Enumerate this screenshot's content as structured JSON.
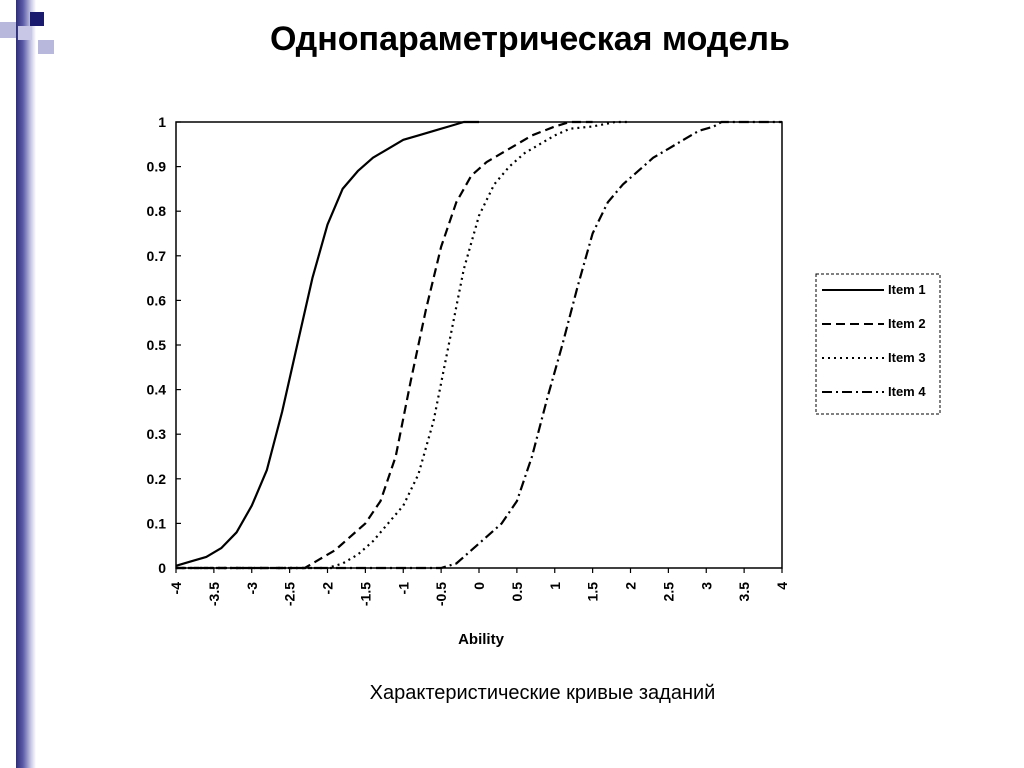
{
  "slide": {
    "title": "Однопараметрическая модель",
    "caption": "Характеристические кривые заданий",
    "colors": {
      "bar_dark": "#2e2e78",
      "bar_light": "#c8c8e6",
      "square_navy": "#1a1a6e",
      "square_light": "#b8b8dc"
    }
  },
  "chart_data": {
    "type": "line",
    "title": "",
    "xlabel": "Ability",
    "ylabel": "",
    "xlim": [
      -4,
      4
    ],
    "ylim": [
      0,
      1
    ],
    "x_ticks": [
      "-4",
      "-3.5",
      "-3",
      "-2.5",
      "-2",
      "-1.5",
      "-1",
      "-0.5",
      "0",
      "0.5",
      "1",
      "1.5",
      "2",
      "2.5",
      "3",
      "3.5",
      "4"
    ],
    "y_ticks": [
      "0",
      "0.1",
      "0.2",
      "0.3",
      "0.4",
      "0.5",
      "0.6",
      "0.7",
      "0.8",
      "0.9",
      "1"
    ],
    "grid": false,
    "legend_position": "right",
    "series": [
      {
        "name": "Item 1",
        "style": "solid",
        "x": [
          -4,
          -3.8,
          -3.6,
          -3.4,
          -3.2,
          -3,
          -2.8,
          -2.6,
          -2.4,
          -2.2,
          -2,
          -1.8,
          -1.6,
          -1.4,
          -1.2,
          -1,
          -0.8,
          -0.6,
          -0.4,
          -0.2,
          0
        ],
        "y": [
          0.005,
          0.015,
          0.025,
          0.045,
          0.08,
          0.14,
          0.22,
          0.35,
          0.5,
          0.65,
          0.77,
          0.85,
          0.89,
          0.92,
          0.94,
          0.96,
          0.97,
          0.98,
          0.99,
          1,
          1
        ]
      },
      {
        "name": "Item 2",
        "style": "dashed",
        "x": [
          -4,
          -3,
          -2.5,
          -2.3,
          -2.1,
          -1.9,
          -1.7,
          -1.5,
          -1.3,
          -1.1,
          -0.9,
          -0.7,
          -0.5,
          -0.3,
          -0.1,
          0.1,
          0.3,
          0.5,
          0.7,
          1,
          1.2,
          1.5
        ],
        "y": [
          0,
          0,
          0,
          0,
          0.02,
          0.04,
          0.07,
          0.1,
          0.15,
          0.25,
          0.42,
          0.58,
          0.72,
          0.82,
          0.88,
          0.91,
          0.93,
          0.95,
          0.97,
          0.99,
          1,
          1
        ]
      },
      {
        "name": "Item 3",
        "style": "dotted",
        "x": [
          -4,
          -2.5,
          -2,
          -1.8,
          -1.6,
          -1.4,
          -1.2,
          -1,
          -0.8,
          -0.6,
          -0.4,
          -0.2,
          0,
          0.2,
          0.4,
          0.6,
          0.8,
          1,
          1.2,
          1.5,
          1.8,
          2
        ],
        "y": [
          0,
          0,
          0,
          0.01,
          0.03,
          0.06,
          0.1,
          0.14,
          0.21,
          0.33,
          0.5,
          0.67,
          0.79,
          0.86,
          0.9,
          0.93,
          0.95,
          0.97,
          0.985,
          0.99,
          1,
          1
        ]
      },
      {
        "name": "Item 4",
        "style": "dashdot",
        "x": [
          -4,
          -1,
          -0.5,
          -0.3,
          -0.1,
          0.1,
          0.3,
          0.5,
          0.7,
          0.9,
          1.1,
          1.3,
          1.5,
          1.7,
          1.9,
          2.1,
          2.3,
          2.5,
          2.7,
          2.9,
          3.1,
          3.2,
          3.5,
          4
        ],
        "y": [
          0,
          0,
          0,
          0.01,
          0.04,
          0.07,
          0.1,
          0.15,
          0.25,
          0.38,
          0.5,
          0.63,
          0.75,
          0.82,
          0.86,
          0.89,
          0.92,
          0.94,
          0.96,
          0.98,
          0.99,
          1,
          1,
          1
        ]
      }
    ]
  }
}
